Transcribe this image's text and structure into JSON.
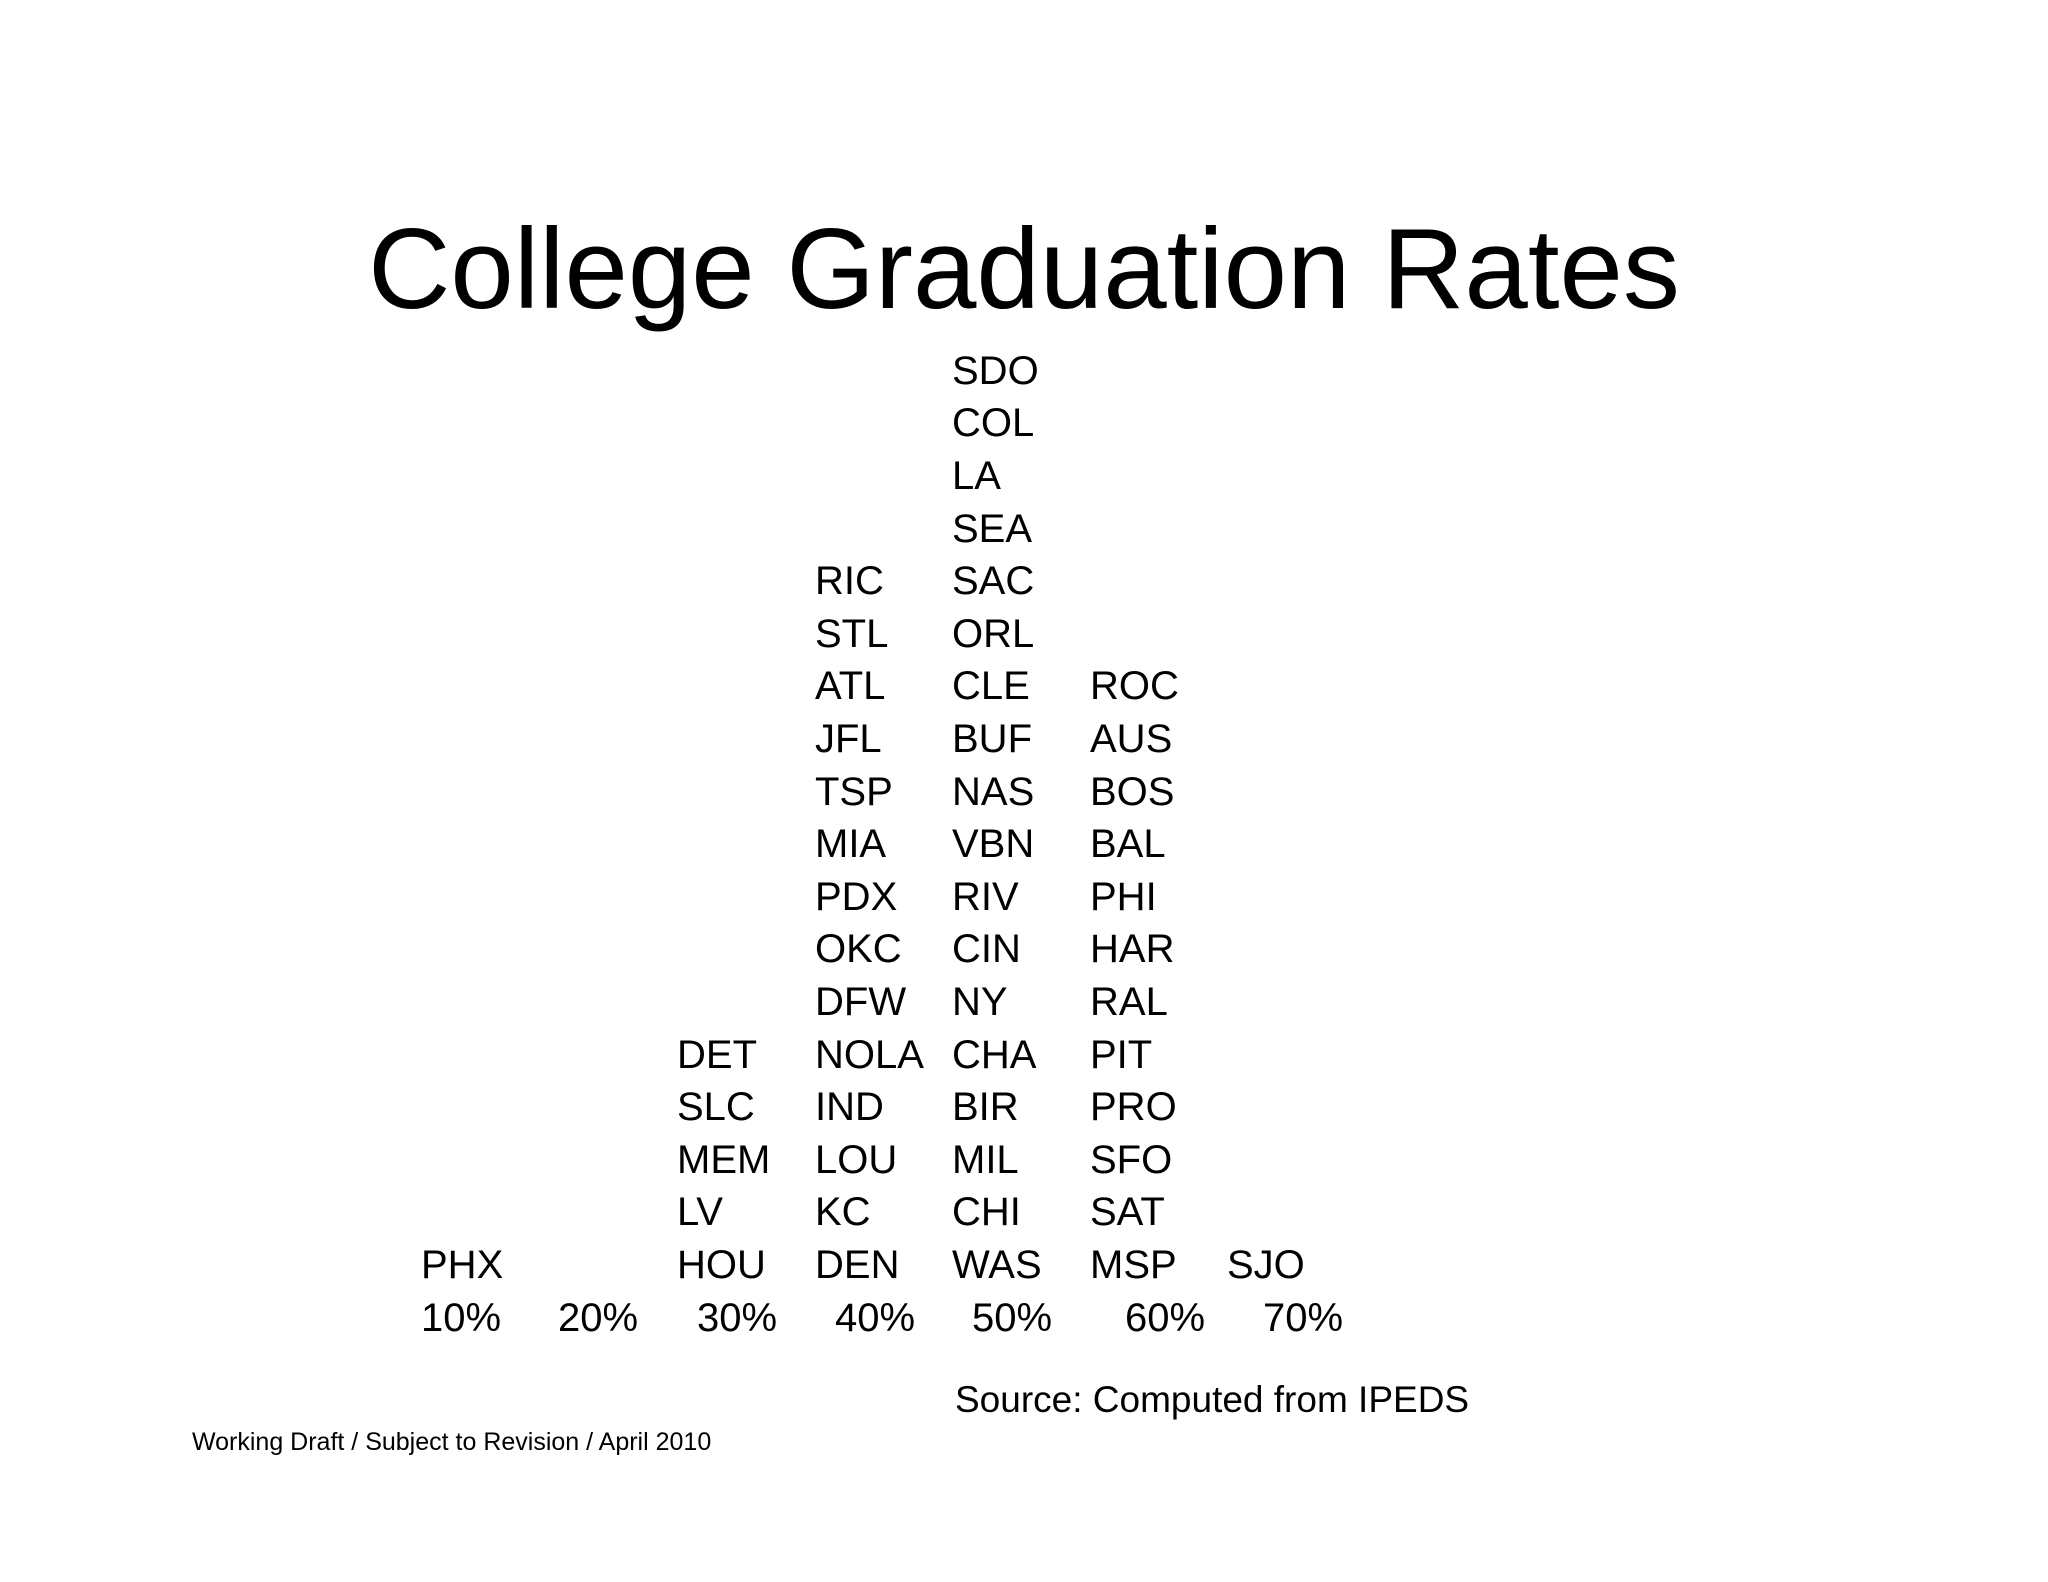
{
  "chart_data": {
    "type": "dot-plot",
    "title": "College Graduation Rates",
    "x_axis_ticks": [
      "10%",
      "20%",
      "30%",
      "40%",
      "50%",
      "60%",
      "70%"
    ],
    "bins": [
      {
        "tick": "10%",
        "cities": [
          "PHX"
        ]
      },
      {
        "tick": "20%",
        "cities": []
      },
      {
        "tick": "30%",
        "cities": [
          "HOU",
          "LV",
          "MEM",
          "SLC",
          "DET"
        ]
      },
      {
        "tick": "40%",
        "cities": [
          "DEN",
          "KC",
          "LOU",
          "IND",
          "NOLA",
          "DFW",
          "OKC",
          "PDX",
          "MIA",
          "TSP",
          "JFL",
          "ATL",
          "STL",
          "RIC"
        ]
      },
      {
        "tick": "50%",
        "cities": [
          "WAS",
          "CHI",
          "MIL",
          "BIR",
          "CHA",
          "NY",
          "CIN",
          "RIV",
          "VBN",
          "NAS",
          "BUF",
          "CLE",
          "ORL",
          "SAC",
          "SEA",
          "LA",
          "COL",
          "SDO"
        ]
      },
      {
        "tick": "60%",
        "cities": [
          "MSP",
          "SAT",
          "SFO",
          "PRO",
          "PIT",
          "RAL",
          "HAR",
          "PHI",
          "BAL",
          "BOS",
          "AUS",
          "ROC"
        ]
      },
      {
        "tick": "70%",
        "cities": [
          "SJO"
        ]
      }
    ],
    "source": "Source: Computed from IPEDS"
  },
  "footer": "Working Draft / Subject to Revision / April 2010"
}
